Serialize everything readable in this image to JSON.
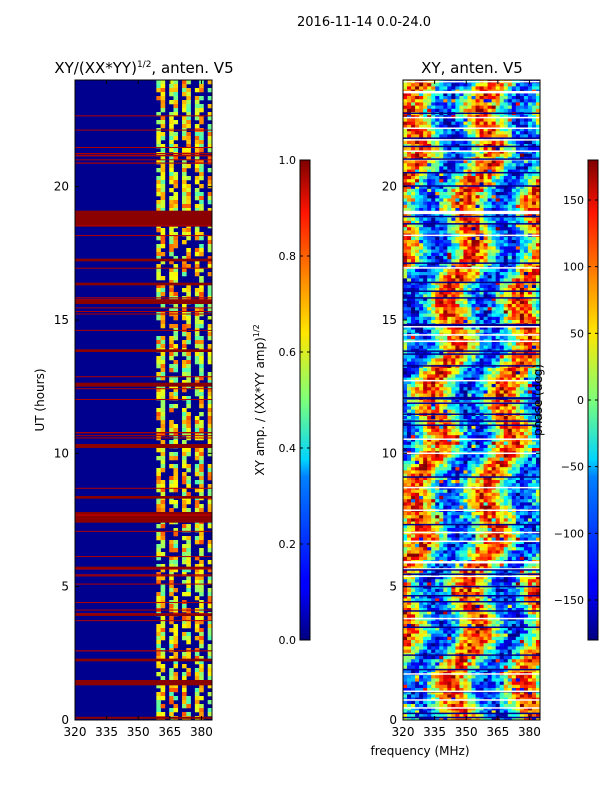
{
  "figure": {
    "suptitle": "2016-11-14 0.0-24.0"
  },
  "chart_data": [
    {
      "id": "amp",
      "type": "heatmap",
      "title_main": "XY/(XX*YY)",
      "title_exp": "1/2",
      "title_tail": ", anten. V5",
      "xlabel": "",
      "ylabel": "UT (hours)",
      "xlim": [
        320,
        385
      ],
      "ylim": [
        0,
        24
      ],
      "xticks": [
        320,
        335,
        350,
        365,
        380
      ],
      "yticks": [
        0,
        5,
        10,
        15,
        20
      ],
      "colorbar": {
        "label_main": "XY amp. / (XX*YY amp)",
        "label_exp": "1/2",
        "range": [
          0.0,
          1.0
        ],
        "ticks": [
          "0.0",
          "0.2",
          "0.4",
          "0.6",
          "0.8",
          "1.0"
        ]
      },
      "red_bands_hours": [
        [
          18.5,
          19.1
        ],
        [
          7.4,
          7.8
        ],
        [
          1.3,
          1.5
        ],
        [
          15.6,
          15.75
        ],
        [
          12.5,
          12.65
        ],
        [
          10.2,
          10.35
        ],
        [
          5.65,
          5.75
        ],
        [
          3.9,
          4.0
        ],
        [
          2.2,
          2.3
        ],
        [
          0.05,
          0.12
        ],
        [
          16.3,
          16.4
        ],
        [
          17.2,
          17.3
        ],
        [
          13.8,
          13.9
        ],
        [
          8.3,
          8.4
        ]
      ]
    },
    {
      "id": "phase",
      "type": "heatmap",
      "title": "XY, anten. V5",
      "xlabel": "frequency (MHz)",
      "ylabel": "",
      "xlim": [
        320,
        385
      ],
      "ylim": [
        0,
        24
      ],
      "xticks": [
        320,
        335,
        350,
        365,
        380
      ],
      "yticks": [
        0,
        5,
        10,
        15,
        20
      ],
      "colorbar": {
        "label": "phase (deg)",
        "range": [
          -180,
          180
        ],
        "ticks": [
          "−150",
          "−100",
          "−50",
          "0",
          "50",
          "100",
          "150"
        ],
        "tick_values": [
          -150,
          -100,
          -50,
          0,
          50,
          100,
          150
        ]
      }
    }
  ]
}
